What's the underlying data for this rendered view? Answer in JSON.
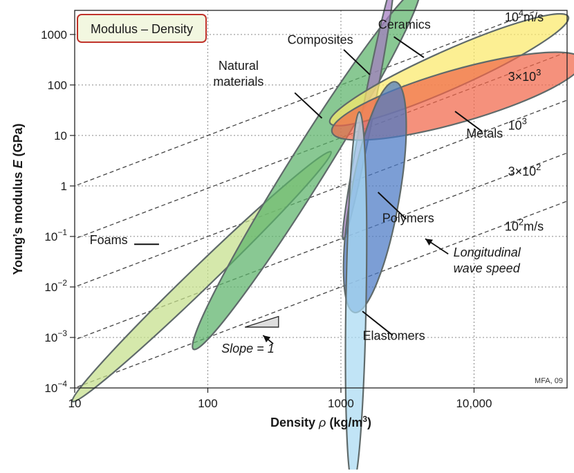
{
  "chart_data": {
    "type": "scatter",
    "title": "Modulus – Density",
    "xlabel": "Density ρ (kg/m³)",
    "ylabel": "Young's modulus E (GPa)",
    "xscale": "log",
    "yscale": "log",
    "xlim": [
      10,
      50000
    ],
    "ylim": [
      0.0001,
      3000
    ],
    "grid": true,
    "x_ticks": [
      {
        "v": 10,
        "label": "10"
      },
      {
        "v": 100,
        "label": "100"
      },
      {
        "v": 1000,
        "label": "1000"
      },
      {
        "v": 10000,
        "label": "10,000"
      }
    ],
    "y_ticks": [
      {
        "v": 0.0001,
        "base": "10",
        "exp": "−4"
      },
      {
        "v": 0.001,
        "base": "10",
        "exp": "−3"
      },
      {
        "v": 0.01,
        "base": "10",
        "exp": "−2"
      },
      {
        "v": 0.1,
        "base": "10",
        "exp": "−1"
      },
      {
        "v": 1,
        "base": "1",
        "exp": ""
      },
      {
        "v": 10,
        "base": "10",
        "exp": ""
      },
      {
        "v": 100,
        "base": "100",
        "exp": ""
      },
      {
        "v": 1000,
        "base": "1000",
        "exp": ""
      }
    ],
    "groups": [
      {
        "name": "Foams",
        "color": "#c5df8a",
        "center": [
          90,
          0.016
        ],
        "semi_axes_decades": [
          1.35,
          0.22
        ],
        "angle_deg": 44,
        "label_at": [
          18,
          0.07
        ],
        "pointer": [
          [
            28,
            0.07
          ],
          [
            43,
            0.07
          ]
        ]
      },
      {
        "name": "Natural materials",
        "color": "#5bb36a",
        "center": [
          550,
          2.2
        ],
        "semi_axes_decades": [
          1.6,
          0.36
        ],
        "angle_deg": 58,
        "label_at": [
          170,
          200
        ],
        "pointer": [
          [
            450,
            70
          ],
          [
            720,
            22
          ]
        ]
      },
      {
        "name": "Composites",
        "color": "#a37cc0",
        "center": [
          1600,
          30
        ],
        "semi_axes_decades": [
          0.98,
          0.11
        ],
        "angle_deg": 79,
        "label_at": [
          700,
          650
        ],
        "pointer": [
          [
            1050,
            500
          ],
          [
            1650,
            160
          ]
        ]
      },
      {
        "name": "Ceramics",
        "color": "#fbe96a",
        "center": [
          6500,
          200
        ],
        "semi_axes_decades": [
          0.98,
          0.38
        ],
        "angle_deg": 24,
        "label_at": [
          3000,
          1300
        ],
        "pointer": [
          [
            2500,
            900
          ],
          [
            4200,
            350
          ]
        ]
      },
      {
        "name": "Metals",
        "color": "#f1674a",
        "center": [
          7500,
          60
        ],
        "semi_axes_decades": [
          0.98,
          0.52
        ],
        "angle_deg": 16,
        "label_at": [
          12000,
          9
        ],
        "pointer": [
          [
            11500,
            12
          ],
          [
            7200,
            30
          ]
        ]
      },
      {
        "name": "Polymers",
        "color": "#4a78c5",
        "center": [
          1800,
          0.6
        ],
        "semi_axes_decades": [
          0.88,
          0.48
        ],
        "angle_deg": 80,
        "label_at": [
          3200,
          0.19
        ],
        "pointer": [
          [
            3100,
            0.22
          ],
          [
            1900,
            0.75
          ]
        ]
      },
      {
        "name": "Elastomers",
        "color": "#a9daf2",
        "center": [
          1300,
          0.006
        ],
        "semi_axes_decades": [
          1.4,
          0.2
        ],
        "angle_deg": 89,
        "label_at": [
          2500,
          0.0009
        ],
        "pointer": [
          [
            2450,
            0.0011
          ],
          [
            1450,
            0.0033
          ]
        ]
      }
    ],
    "speed_lines": [
      {
        "speed_m_s": 100,
        "label_base": "10",
        "label_exp": "2",
        "label_suffix": "m/s",
        "label_at": [
          17000,
          0.13
        ]
      },
      {
        "speed_m_s": 300,
        "label_base": "3×10",
        "label_exp": "2",
        "label_suffix": "",
        "label_at": [
          18000,
          1.6
        ]
      },
      {
        "speed_m_s": 1000,
        "label_base": "10",
        "label_exp": "3",
        "label_suffix": "",
        "label_at": [
          18000,
          13
        ]
      },
      {
        "speed_m_s": 3000,
        "label_base": "3×10",
        "label_exp": "3",
        "label_suffix": "",
        "label_at": [
          18000,
          120
        ]
      },
      {
        "speed_m_s": 10000,
        "label_base": "10",
        "label_exp": "4",
        "label_suffix": "m/s",
        "label_at": [
          17000,
          1800
        ]
      }
    ],
    "annotations": {
      "wave_speed": {
        "lines": [
          "Longitudinal",
          "wave speed"
        ],
        "label_at": [
          7000,
          0.04
        ],
        "arrow": [
          [
            6400,
            0.045
          ],
          [
            4300,
            0.09
          ]
        ]
      },
      "slope": {
        "label": "Slope = 1",
        "label_at": [
          200,
          0.0005
        ],
        "triangle": [
          [
            190,
            0.0016
          ],
          [
            340,
            0.0016
          ],
          [
            340,
            0.0026
          ]
        ],
        "arrow": [
          [
            310,
            0.00075
          ],
          [
            260,
            0.0011
          ]
        ]
      },
      "credit": "MFA, 09"
    }
  }
}
